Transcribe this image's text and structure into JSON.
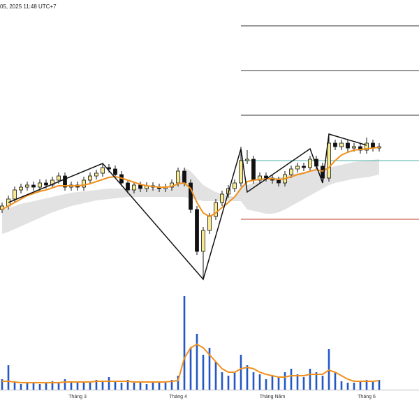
{
  "chart_data": {
    "type": "candlestick",
    "subtitle": "05, 2025 11:48 UTC+7",
    "categories": [
      null,
      null,
      null,
      null,
      null,
      null,
      null,
      null,
      null,
      null,
      null,
      null,
      "Tháng 3",
      null,
      null,
      null,
      null,
      null,
      null,
      null,
      null,
      null,
      null,
      null,
      null,
      null,
      null,
      null,
      "Tháng 4",
      null,
      null,
      null,
      null,
      null,
      null,
      null,
      null,
      null,
      null,
      null,
      null,
      null,
      null,
      "Tháng Năm",
      null,
      null,
      null,
      null,
      null,
      null,
      null,
      null,
      null,
      null,
      null,
      null,
      null,
      null,
      "Tháng 6",
      null,
      null
    ],
    "open": [
      300,
      305,
      315,
      328,
      332,
      335,
      332,
      338,
      335,
      342,
      348,
      332,
      335,
      332,
      342,
      348,
      352,
      360,
      358,
      350,
      338,
      328,
      335,
      330,
      334,
      332,
      330,
      332,
      338,
      355,
      338,
      300,
      240,
      270,
      290,
      310,
      322,
      330,
      338,
      370,
      372,
      342,
      348,
      345,
      342,
      338,
      350,
      358,
      362,
      360,
      372,
      362,
      345,
      395,
      390,
      395,
      388,
      390,
      385,
      395,
      388
    ],
    "high": [
      310,
      320,
      333,
      337,
      340,
      340,
      343,
      343,
      347,
      353,
      353,
      340,
      340,
      347,
      353,
      357,
      365,
      365,
      363,
      355,
      343,
      340,
      340,
      339,
      339,
      337,
      337,
      343,
      360,
      360,
      343,
      305,
      275,
      295,
      315,
      327,
      335,
      343,
      390,
      385,
      377,
      353,
      353,
      350,
      347,
      355,
      363,
      367,
      367,
      377,
      377,
      367,
      408,
      400,
      400,
      400,
      395,
      395,
      403,
      400,
      395
    ],
    "low": [
      295,
      300,
      310,
      323,
      327,
      327,
      327,
      330,
      330,
      337,
      327,
      327,
      327,
      327,
      337,
      343,
      347,
      353,
      345,
      333,
      323,
      323,
      325,
      325,
      327,
      325,
      325,
      327,
      333,
      333,
      295,
      235,
      200,
      265,
      285,
      305,
      317,
      325,
      333,
      365,
      337,
      337,
      340,
      337,
      333,
      333,
      345,
      353,
      355,
      355,
      357,
      340,
      340,
      385,
      385,
      383,
      383,
      380,
      380,
      383,
      383
    ],
    "close": [
      305,
      315,
      328,
      332,
      335,
      332,
      338,
      335,
      342,
      348,
      332,
      335,
      332,
      342,
      348,
      352,
      360,
      358,
      350,
      338,
      328,
      335,
      330,
      334,
      332,
      330,
      332,
      338,
      355,
      338,
      300,
      240,
      270,
      290,
      310,
      322,
      330,
      338,
      370,
      372,
      342,
      348,
      345,
      342,
      338,
      350,
      358,
      362,
      360,
      372,
      362,
      345,
      395,
      390,
      395,
      388,
      390,
      385,
      395,
      388,
      390
    ],
    "ma": [
      300,
      305,
      310,
      315,
      320,
      323,
      326,
      328,
      331,
      334,
      334,
      334,
      334,
      335,
      337,
      340,
      343,
      346,
      347,
      345,
      342,
      339,
      336,
      334,
      333,
      332,
      332,
      333,
      337,
      338,
      330,
      310,
      295,
      290,
      295,
      303,
      310,
      318,
      330,
      340,
      342,
      343,
      344,
      344,
      343,
      344,
      347,
      350,
      352,
      355,
      357,
      355,
      360,
      370,
      378,
      382,
      385,
      386,
      387,
      388,
      389
    ],
    "band_upper": [
      300,
      302,
      305,
      308,
      310,
      312,
      314,
      316,
      318,
      320,
      322,
      324,
      325,
      326,
      327,
      328,
      329,
      330,
      330,
      330,
      330,
      330,
      330,
      330,
      330,
      330,
      330,
      330,
      340,
      360,
      355,
      345,
      335,
      330,
      325,
      322,
      320,
      318,
      335,
      335,
      338,
      340,
      342,
      344,
      346,
      348,
      350,
      352,
      354,
      355,
      356,
      358,
      360,
      362,
      364,
      366,
      368,
      369,
      370,
      371,
      372
    ],
    "band_lower": [
      265,
      268,
      272,
      276,
      280,
      284,
      288,
      292,
      296,
      299,
      302,
      305,
      307,
      309,
      311,
      313,
      314,
      315,
      316,
      317,
      318,
      318,
      318,
      318,
      318,
      318,
      318,
      318,
      318,
      318,
      316,
      314,
      312,
      312,
      312,
      312,
      312,
      312,
      312,
      300,
      298,
      296,
      294,
      294,
      296,
      300,
      305,
      310,
      315,
      320,
      325,
      330,
      335,
      338,
      340,
      342,
      344,
      345,
      346,
      348,
      350
    ],
    "volume": [
      15,
      35,
      12,
      8,
      10,
      10,
      8,
      10,
      12,
      10,
      15,
      10,
      12,
      10,
      12,
      14,
      12,
      18,
      12,
      10,
      14,
      10,
      10,
      8,
      10,
      12,
      10,
      14,
      20,
      134,
      60,
      80,
      50,
      60,
      40,
      25,
      20,
      25,
      50,
      35,
      25,
      22,
      15,
      20,
      18,
      25,
      30,
      22,
      18,
      30,
      25,
      20,
      58,
      25,
      12,
      10,
      10,
      12,
      14,
      12,
      14
    ],
    "volume_ma": [
      12,
      12,
      11,
      10,
      10,
      10,
      10,
      10,
      10,
      10,
      11,
      11,
      11,
      11,
      11,
      12,
      12,
      12,
      12,
      12,
      12,
      11,
      11,
      11,
      11,
      11,
      11,
      12,
      13,
      45,
      60,
      65,
      60,
      50,
      40,
      30,
      25,
      25,
      30,
      32,
      30,
      25,
      22,
      20,
      18,
      18,
      20,
      20,
      20,
      22,
      22,
      22,
      28,
      25,
      20,
      15,
      12,
      12,
      12,
      12,
      13
    ],
    "zigzag": {
      "x": [
        1,
        16,
        32,
        38,
        39,
        49,
        51,
        52,
        58
      ],
      "values": [
        310,
        366,
        200,
        387,
        325,
        387,
        338,
        408,
        392
      ]
    },
    "levels": {
      "start": 38,
      "values": [
        563,
        499,
        435,
        370,
        286
      ],
      "colors": [
        "#333333",
        "#333333",
        "#333333",
        "#4fb3a9",
        "#c0392b"
      ]
    },
    "up_color": "#f7ea90",
    "down_color": "#111111",
    "ma_color": "#f0901e",
    "volume_color": "#2457c5",
    "band_color": "#e2e2e2",
    "ylim": [
      0,
      600
    ],
    "vlim": [
      0,
      140
    ]
  }
}
